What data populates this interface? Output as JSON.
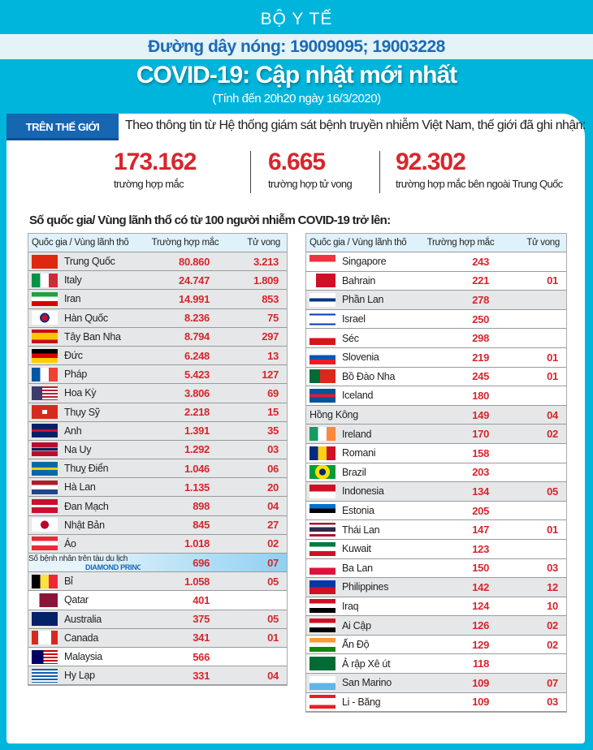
{
  "header": {
    "org": "BỘ Y TẾ",
    "hotline": "Đường dây nóng: 19009095; 19003228",
    "title": "COVID-19: Cập nhật mới nhất",
    "subtitle": "(Tính đến 20h20  ngày 16/3/2020)"
  },
  "world": {
    "tab": "TRÊN THẾ GIỚI",
    "intro": "Theo thông tin từ Hệ thống giám sát bệnh truyền nhiễm Việt Nam, thế giới đã ghi nhận:",
    "stats": [
      {
        "value": "173.162",
        "label": "trường hợp mắc"
      },
      {
        "value": "6.665",
        "label": "trường hợp tử vong"
      },
      {
        "value": "92.302",
        "label": "trường hợp  mắc bên ngoài Trung Quốc"
      }
    ]
  },
  "table_title": "Số quốc gia/ Vùng lãnh thổ có từ 100 người  nhiễm COVID-19 trở lên:",
  "columns": [
    "Quốc gia / Vùng lãnh thổ",
    "Trường hợp mắc",
    "Tử vong"
  ],
  "left": [
    {
      "flag": "cn",
      "name": "Trung Quốc",
      "cases": "80.860",
      "deaths": "3.213",
      "bg": "g"
    },
    {
      "flag": "it",
      "name": "Italy",
      "cases": "24.747",
      "deaths": "1.809",
      "bg": "g"
    },
    {
      "flag": "ir",
      "name": "Iran",
      "cases": "14.991",
      "deaths": "853",
      "bg": "g"
    },
    {
      "flag": "kr",
      "name": "Hàn Quốc",
      "cases": "8.236",
      "deaths": "75",
      "bg": "g"
    },
    {
      "flag": "es",
      "name": "Tây Ban Nha",
      "cases": "8.794",
      "deaths": "297",
      "bg": "g"
    },
    {
      "flag": "de",
      "name": "Đức",
      "cases": "6.248",
      "deaths": "13",
      "bg": "g"
    },
    {
      "flag": "fr",
      "name": "Pháp",
      "cases": "5.423",
      "deaths": "127",
      "bg": "g"
    },
    {
      "flag": "us",
      "name": "Hoa Kỳ",
      "cases": "3.806",
      "deaths": "69",
      "bg": "g"
    },
    {
      "flag": "ch",
      "name": "Thụy Sỹ",
      "cases": "2.218",
      "deaths": "15",
      "bg": "g"
    },
    {
      "flag": "gb",
      "name": "Anh",
      "cases": "1.391",
      "deaths": "35",
      "bg": "g"
    },
    {
      "flag": "no",
      "name": "Na Uy",
      "cases": "1.292",
      "deaths": "03",
      "bg": "g"
    },
    {
      "flag": "se",
      "name": "Thuỵ Điển",
      "cases": "1.046",
      "deaths": "06",
      "bg": "g"
    },
    {
      "flag": "nl",
      "name": "Hà Lan",
      "cases": "1.135",
      "deaths": "20",
      "bg": "g"
    },
    {
      "flag": "dk",
      "name": "Đan Mạch",
      "cases": "898",
      "deaths": "04",
      "bg": "g"
    },
    {
      "flag": "jp",
      "name": "Nhật Bản",
      "cases": "845",
      "deaths": "27",
      "bg": "g"
    },
    {
      "flag": "at",
      "name": "Áo",
      "cases": "1.018",
      "deaths": "02",
      "bg": "g"
    },
    {
      "flag": "ship",
      "name": "Số bệnh nhân trên tàu du lịch",
      "ship": "DIAMOND PRINCESS",
      "cases": "696",
      "deaths": "07",
      "bg": "ship"
    },
    {
      "flag": "be",
      "name": "Bỉ",
      "cases": "1.058",
      "deaths": "05",
      "bg": "g"
    },
    {
      "flag": "qa",
      "name": "Qatar",
      "cases": "401",
      "deaths": "",
      "bg": "w"
    },
    {
      "flag": "au",
      "name": "Australia",
      "cases": "375",
      "deaths": "05",
      "bg": "g"
    },
    {
      "flag": "ca",
      "name": "Canada",
      "cases": "341",
      "deaths": "01",
      "bg": "g"
    },
    {
      "flag": "my",
      "name": "Malaysia",
      "cases": "566",
      "deaths": "",
      "bg": "w"
    },
    {
      "flag": "gr",
      "name": "Hy Lạp",
      "cases": "331",
      "deaths": "04",
      "bg": "g"
    }
  ],
  "right": [
    {
      "flag": "sg",
      "name": "Singapore",
      "cases": "243",
      "deaths": "",
      "bg": "w"
    },
    {
      "flag": "bh",
      "name": "Bahrain",
      "cases": "221",
      "deaths": "01",
      "bg": "w"
    },
    {
      "flag": "fi",
      "name": "Phần Lan",
      "cases": "278",
      "deaths": "",
      "bg": "g"
    },
    {
      "flag": "il",
      "name": "Israel",
      "cases": "250",
      "deaths": "",
      "bg": "w"
    },
    {
      "flag": "cz",
      "name": "Séc",
      "cases": "298",
      "deaths": "",
      "bg": "w"
    },
    {
      "flag": "si",
      "name": "Slovenia",
      "cases": "219",
      "deaths": "01",
      "bg": "w"
    },
    {
      "flag": "pt",
      "name": "Bồ Đào Nha",
      "cases": "245",
      "deaths": "01",
      "bg": "w"
    },
    {
      "flag": "is",
      "name": "Iceland",
      "cases": "180",
      "deaths": "",
      "bg": "w"
    },
    {
      "flag": "",
      "name": "Hồng Kông",
      "cases": "149",
      "deaths": "04",
      "bg": "g"
    },
    {
      "flag": "ie",
      "name": "Ireland",
      "cases": "170",
      "deaths": "02",
      "bg": "g"
    },
    {
      "flag": "ro",
      "name": "Romani",
      "cases": "158",
      "deaths": "",
      "bg": "w"
    },
    {
      "flag": "br",
      "name": "Brazil",
      "cases": "203",
      "deaths": "",
      "bg": "w"
    },
    {
      "flag": "id",
      "name": "Indonesia",
      "cases": "134",
      "deaths": "05",
      "bg": "g"
    },
    {
      "flag": "ee",
      "name": "Estonia",
      "cases": "205",
      "deaths": "",
      "bg": "w"
    },
    {
      "flag": "th",
      "name": "Thái Lan",
      "cases": "147",
      "deaths": "01",
      "bg": "w"
    },
    {
      "flag": "kw",
      "name": "Kuwait",
      "cases": "123",
      "deaths": "",
      "bg": "w"
    },
    {
      "flag": "pl",
      "name": "Ba Lan",
      "cases": "150",
      "deaths": "03",
      "bg": "w"
    },
    {
      "flag": "ph",
      "name": "Philippines",
      "cases": "142",
      "deaths": "12",
      "bg": "g"
    },
    {
      "flag": "iq",
      "name": "Iraq",
      "cases": "124",
      "deaths": "10",
      "bg": "w"
    },
    {
      "flag": "eg",
      "name": "Ai Cập",
      "cases": "126",
      "deaths": "02",
      "bg": "g"
    },
    {
      "flag": "in",
      "name": "Ấn Độ",
      "cases": "129",
      "deaths": "02",
      "bg": "w"
    },
    {
      "flag": "sa",
      "name": "Ả rập Xê út",
      "cases": "118",
      "deaths": "",
      "bg": "w"
    },
    {
      "flag": "sm",
      "name": "San Marino",
      "cases": "109",
      "deaths": "07",
      "bg": "g"
    },
    {
      "flag": "lb",
      "name": "Li - Băng",
      "cases": "109",
      "deaths": "03",
      "bg": "w"
    }
  ]
}
